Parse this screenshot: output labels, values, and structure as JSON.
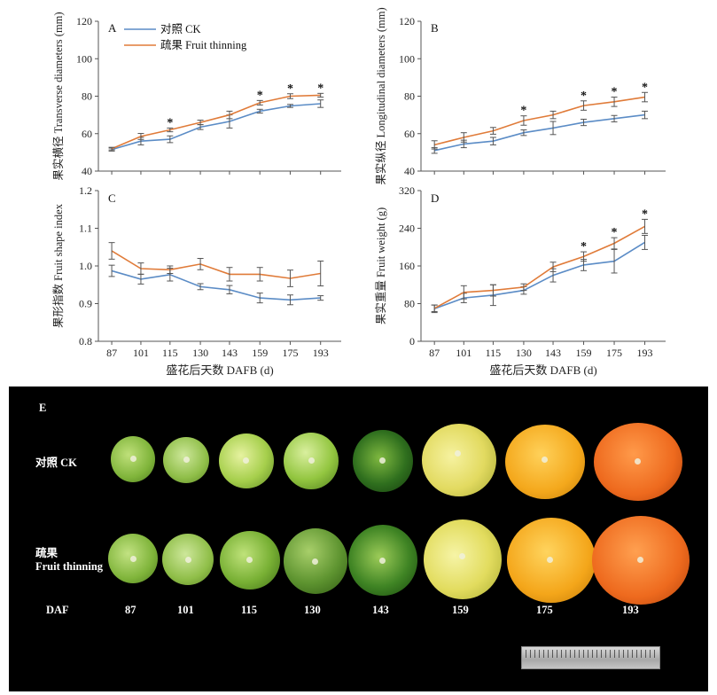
{
  "chart_data": [
    {
      "panel": "A",
      "type": "line",
      "ylabel": "果实横径 Transverse diameters (mm)",
      "xlabel": "盛花后天数 DAFB (d)",
      "categories": [
        "87",
        "101",
        "115",
        "130",
        "143",
        "159",
        "175",
        "193"
      ],
      "ylim": [
        40,
        120
      ],
      "yticks": [
        "40",
        "60",
        "80",
        "100",
        "120"
      ],
      "legend": [
        "对照 CK",
        "疏果 Fruit thinning"
      ],
      "series": [
        {
          "name": "对照 CK",
          "color": "#5b8cc6",
          "values": [
            51.5,
            56.0,
            57.0,
            63.5,
            66.5,
            72.0,
            74.8,
            76.0
          ],
          "err": [
            0.8,
            2.0,
            1.8,
            1.3,
            3.5,
            1.0,
            0.8,
            2.0
          ]
        },
        {
          "name": "疏果 Fruit thinning",
          "color": "#e07b39",
          "values": [
            52.0,
            58.5,
            62.0,
            66.0,
            70.0,
            76.5,
            80.0,
            80.5
          ],
          "err": [
            0.7,
            1.6,
            1.0,
            1.2,
            2.0,
            1.2,
            1.3,
            1.0
          ]
        }
      ],
      "significant": [
        false,
        false,
        true,
        false,
        false,
        true,
        true,
        true
      ]
    },
    {
      "panel": "B",
      "type": "line",
      "ylabel": "果实纵径 Longitudinal diameters (mm)",
      "xlabel": "",
      "categories": [
        "87",
        "101",
        "115",
        "130",
        "143",
        "159",
        "175",
        "193"
      ],
      "ylim": [
        40,
        120
      ],
      "yticks": [
        "40",
        "60",
        "80",
        "100",
        "120"
      ],
      "series": [
        {
          "name": "对照 CK",
          "color": "#5b8cc6",
          "values": [
            51.0,
            54.5,
            56.0,
            60.5,
            63.0,
            66.0,
            68.0,
            70.0
          ],
          "err": [
            1.5,
            2.0,
            2.0,
            1.5,
            3.5,
            1.7,
            1.7,
            2.0
          ]
        },
        {
          "name": "疏果 Fruit thinning",
          "color": "#e07b39",
          "values": [
            54.0,
            58.0,
            61.5,
            67.0,
            70.0,
            75.0,
            77.0,
            79.5
          ],
          "err": [
            2.2,
            2.5,
            1.8,
            2.5,
            2.0,
            2.5,
            2.5,
            2.5
          ]
        }
      ],
      "significant": [
        false,
        false,
        false,
        true,
        false,
        true,
        true,
        true
      ]
    },
    {
      "panel": "C",
      "type": "line",
      "ylabel": "果形指数 Fruit shape index",
      "xlabel": "盛花后天数 DAFB (d)",
      "categories": [
        "87",
        "101",
        "115",
        "130",
        "143",
        "159",
        "175",
        "193"
      ],
      "ylim": [
        0.8,
        1.2
      ],
      "yticks": [
        "0.8",
        "0.9",
        "1.0",
        "1.1",
        "1.2"
      ],
      "series": [
        {
          "name": "对照 CK",
          "color": "#5b8cc6",
          "values": [
            0.987,
            0.965,
            0.977,
            0.945,
            0.937,
            0.915,
            0.91,
            0.915
          ],
          "err": [
            0.015,
            0.013,
            0.017,
            0.008,
            0.011,
            0.013,
            0.013,
            0.006
          ]
        },
        {
          "name": "疏果 Fruit thinning",
          "color": "#e07b39",
          "values": [
            1.04,
            0.993,
            0.99,
            1.005,
            0.978,
            0.978,
            0.967,
            0.98
          ],
          "err": [
            0.022,
            0.015,
            0.01,
            0.015,
            0.018,
            0.018,
            0.022,
            0.033
          ]
        }
      ],
      "significant": [
        false,
        false,
        false,
        false,
        false,
        false,
        false,
        false
      ]
    },
    {
      "panel": "D",
      "type": "line",
      "ylabel": "果实重量 Fruit weight (g)",
      "xlabel": "盛花后天数 DAFB (d)",
      "categories": [
        "87",
        "101",
        "115",
        "130",
        "143",
        "159",
        "175",
        "193"
      ],
      "ylim": [
        0,
        320
      ],
      "yticks": [
        "0",
        "80",
        "160",
        "240",
        "320"
      ],
      "series": [
        {
          "name": "对照 CK",
          "color": "#5b8cc6",
          "values": [
            69,
            92,
            98,
            108,
            140,
            162,
            170,
            210
          ],
          "err": [
            8,
            10,
            22,
            8,
            14,
            12,
            25,
            15
          ]
        },
        {
          "name": "疏果 Fruit thinning",
          "color": "#e07b39",
          "values": [
            70,
            104,
            108,
            115,
            158,
            180,
            208,
            244
          ],
          "err": [
            7,
            14,
            12,
            7,
            10,
            10,
            12,
            15
          ]
        }
      ],
      "significant": [
        false,
        false,
        false,
        false,
        false,
        true,
        true,
        true
      ]
    }
  ],
  "photo": {
    "panel_label": "E",
    "row_ck": "对照 CK",
    "row_thin_1": "疏果",
    "row_thin_2": "Fruit thinning",
    "daf_label": "DAF",
    "days": [
      "87",
      "101",
      "115",
      "130",
      "143",
      "159",
      "175",
      "193"
    ]
  }
}
